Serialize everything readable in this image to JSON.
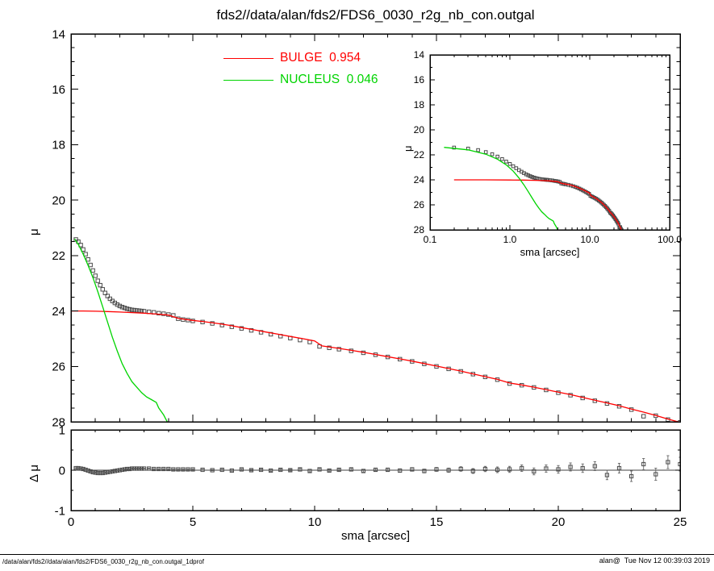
{
  "title": "fds2//data/alan/fds2/FDS6_0030_r2g_nb_con.outgal",
  "footer": {
    "left": "/data/alan/fds2//data/alan/fds2/FDS6_0030_r2g_nb_con.outgal_1dprof",
    "right": "alan@  Tue Nov 12 00:39:03 2019"
  },
  "legend": {
    "items": [
      {
        "label": "BULGE  0.954",
        "color": "#ff0000"
      },
      {
        "label": "NUCLEUS  0.046",
        "color": "#00d400"
      }
    ]
  },
  "colors": {
    "axis": "#000000",
    "data_marker": "#4a4a4a",
    "bulge": "#ff0000",
    "nucleus": "#00d400",
    "background": "#ffffff"
  },
  "chart_data": [
    {
      "id": "main",
      "type": "scatter",
      "xlabel": "sma [arcsec]",
      "ylabel": "μ",
      "xlim": [
        0,
        25
      ],
      "ylim": [
        28,
        14
      ],
      "xticks": [
        0,
        5,
        10,
        15,
        20,
        25
      ],
      "yticks": [
        14,
        16,
        18,
        20,
        22,
        24,
        26,
        28
      ],
      "grid": false,
      "series": [
        {
          "name": "profile-data",
          "type": "scatter",
          "marker": "open-square",
          "color": "#4a4a4a",
          "x": [
            0.2,
            0.3,
            0.4,
            0.5,
            0.6,
            0.7,
            0.8,
            0.9,
            1.0,
            1.1,
            1.2,
            1.3,
            1.4,
            1.5,
            1.6,
            1.7,
            1.8,
            1.9,
            2.0,
            2.1,
            2.2,
            2.3,
            2.4,
            2.5,
            2.6,
            2.7,
            2.8,
            2.9,
            3.0,
            3.2,
            3.4,
            3.6,
            3.8,
            4.0,
            4.2,
            4.4,
            4.6,
            4.8,
            5.0,
            5.4,
            5.8,
            6.2,
            6.6,
            7.0,
            7.4,
            7.8,
            8.2,
            8.6,
            9.0,
            9.4,
            9.8,
            10.2,
            10.6,
            11.0,
            11.5,
            12.0,
            12.5,
            13.0,
            13.5,
            14.0,
            14.5,
            15.0,
            15.5,
            16.0,
            16.5,
            17.0,
            17.5,
            18.0,
            18.5,
            19.0,
            19.5,
            20.0,
            20.5,
            21.0,
            21.5,
            22.0,
            22.5,
            23.0,
            23.5,
            24.0,
            24.5,
            25.0
          ],
          "y": [
            21.42,
            21.5,
            21.62,
            21.78,
            21.95,
            22.14,
            22.34,
            22.54,
            22.73,
            22.91,
            23.07,
            23.22,
            23.35,
            23.46,
            23.56,
            23.64,
            23.71,
            23.77,
            23.82,
            23.86,
            23.89,
            23.92,
            23.94,
            23.96,
            23.97,
            23.98,
            23.99,
            24.0,
            24.01,
            24.03,
            24.05,
            24.08,
            24.1,
            24.13,
            24.16,
            24.28,
            24.31,
            24.33,
            24.36,
            24.4,
            24.45,
            24.51,
            24.57,
            24.63,
            24.7,
            24.77,
            24.84,
            24.91,
            24.98,
            25.05,
            25.12,
            25.28,
            25.33,
            25.38,
            25.44,
            25.51,
            25.58,
            25.66,
            25.74,
            25.82,
            25.91,
            26.0,
            26.09,
            26.18,
            26.28,
            26.38,
            26.48,
            26.62,
            26.68,
            26.76,
            26.85,
            26.95,
            27.04,
            27.14,
            27.24,
            27.34,
            27.44,
            27.56,
            27.8,
            27.78,
            27.92,
            28.02
          ]
        },
        {
          "name": "bulge-model",
          "type": "line",
          "color": "#ff0000",
          "x": [
            0,
            0.2,
            0.3,
            0.5,
            1,
            1.5,
            2,
            2.5,
            3,
            3.5,
            4,
            4.4,
            5,
            5.5,
            6,
            6.5,
            7,
            7.5,
            8,
            8.5,
            9,
            9.5,
            10,
            10.3,
            11,
            11.5,
            12,
            12.5,
            13,
            13.5,
            14,
            14.5,
            15,
            15.5,
            16,
            16.5,
            17,
            17.5,
            18,
            18.5,
            19,
            19.5,
            20,
            20.5,
            21,
            21.5,
            22,
            22.5,
            23,
            23.5,
            24,
            24.5,
            25
          ],
          "y": [
            24.0,
            24.0,
            24.0,
            24.0,
            24.01,
            24.02,
            24.04,
            24.06,
            24.08,
            24.11,
            24.15,
            24.27,
            24.34,
            24.39,
            24.45,
            24.52,
            24.6,
            24.68,
            24.76,
            24.84,
            24.92,
            25.0,
            25.08,
            25.26,
            25.35,
            25.42,
            25.49,
            25.57,
            25.65,
            25.73,
            25.81,
            25.9,
            25.99,
            26.08,
            26.17,
            26.27,
            26.37,
            26.47,
            26.6,
            26.67,
            26.75,
            26.84,
            26.93,
            27.02,
            27.12,
            27.22,
            27.32,
            27.42,
            27.54,
            27.65,
            27.77,
            27.9,
            28.02
          ]
        },
        {
          "name": "nucleus-model",
          "type": "line",
          "color": "#00d400",
          "x": [
            0.15,
            0.3,
            0.5,
            0.7,
            0.9,
            1.1,
            1.3,
            1.5,
            1.7,
            1.9,
            2.1,
            2.3,
            2.5,
            2.7,
            2.9,
            3.1,
            3.3,
            3.5,
            3.6,
            3.8,
            3.95,
            4.1
          ],
          "y": [
            21.4,
            21.6,
            21.95,
            22.35,
            22.8,
            23.3,
            23.85,
            24.4,
            24.95,
            25.45,
            25.9,
            26.25,
            26.55,
            26.75,
            26.95,
            27.1,
            27.2,
            27.3,
            27.5,
            27.75,
            28.0,
            28.3
          ]
        }
      ]
    },
    {
      "id": "inset",
      "type": "scatter",
      "xscale": "log",
      "xlabel": "sma [arcsec]",
      "ylabel": "μ",
      "xlim": [
        0.1,
        100
      ],
      "ylim": [
        28,
        14
      ],
      "xticks": [
        0.1,
        1.0,
        10.0,
        100.0
      ],
      "xtick_labels": [
        "0.1",
        "1.0",
        "10.0",
        "100.0"
      ],
      "yticks": [
        14,
        16,
        18,
        20,
        22,
        24,
        26,
        28
      ],
      "grid": false,
      "series_from": "main"
    },
    {
      "id": "residual",
      "type": "scatter",
      "xlabel": "sma [arcsec]",
      "ylabel": "Δ μ",
      "xlim": [
        0,
        25
      ],
      "ylim": [
        -1,
        1
      ],
      "xticks": [
        0,
        5,
        10,
        15,
        20,
        25
      ],
      "yticks": [
        -1,
        0,
        1
      ],
      "grid": false,
      "series": [
        {
          "name": "residual-data",
          "type": "scatter",
          "marker": "open-square",
          "color": "#4a4a4a",
          "x": [
            0.2,
            0.3,
            0.4,
            0.5,
            0.6,
            0.7,
            0.8,
            0.9,
            1.0,
            1.1,
            1.2,
            1.3,
            1.4,
            1.5,
            1.6,
            1.7,
            1.8,
            1.9,
            2.0,
            2.1,
            2.2,
            2.3,
            2.4,
            2.5,
            2.6,
            2.7,
            2.8,
            2.9,
            3.0,
            3.2,
            3.4,
            3.6,
            3.8,
            4.0,
            4.2,
            4.4,
            4.6,
            4.8,
            5.0,
            5.4,
            5.8,
            6.2,
            6.6,
            7.0,
            7.4,
            7.8,
            8.2,
            8.6,
            9.0,
            9.4,
            9.8,
            10.2,
            10.6,
            11.0,
            11.5,
            12.0,
            12.5,
            13.0,
            13.5,
            14.0,
            14.5,
            15.0,
            15.5,
            16.0,
            16.5,
            17.0,
            17.5,
            18.0,
            18.5,
            19.0,
            19.5,
            20.0,
            20.5,
            21.0,
            21.5,
            22.0,
            22.5,
            23.0,
            23.5,
            24.0,
            24.5,
            25.0
          ],
          "y": [
            0.05,
            0.05,
            0.04,
            0.03,
            0.01,
            -0.01,
            -0.03,
            -0.05,
            -0.06,
            -0.07,
            -0.07,
            -0.07,
            -0.06,
            -0.05,
            -0.04,
            -0.03,
            -0.02,
            -0.01,
            0.0,
            0.01,
            0.02,
            0.03,
            0.03,
            0.04,
            0.04,
            0.04,
            0.04,
            0.04,
            0.04,
            0.04,
            0.03,
            0.03,
            0.03,
            0.03,
            0.02,
            0.02,
            0.02,
            0.02,
            0.02,
            0.01,
            0.0,
            0.01,
            -0.01,
            0.02,
            0.0,
            0.01,
            -0.01,
            0.01,
            0.0,
            0.02,
            -0.02,
            0.02,
            -0.01,
            0.01,
            0.02,
            -0.02,
            0.01,
            0.01,
            -0.01,
            0.02,
            -0.02,
            0.02,
            0.0,
            0.03,
            -0.02,
            0.03,
            0.01,
            0.02,
            0.05,
            -0.03,
            0.04,
            0.02,
            0.08,
            0.05,
            0.1,
            -0.12,
            0.05,
            -0.15,
            0.15,
            -0.1,
            0.2,
            0.15
          ],
          "yerr": [
            0.01,
            0.01,
            0.01,
            0.01,
            0.01,
            0.01,
            0.01,
            0.01,
            0.01,
            0.01,
            0.01,
            0.01,
            0.01,
            0.01,
            0.01,
            0.01,
            0.01,
            0.01,
            0.01,
            0.01,
            0.01,
            0.01,
            0.01,
            0.01,
            0.01,
            0.01,
            0.01,
            0.01,
            0.01,
            0.01,
            0.01,
            0.01,
            0.01,
            0.01,
            0.01,
            0.01,
            0.01,
            0.01,
            0.01,
            0.012,
            0.013,
            0.014,
            0.015,
            0.016,
            0.017,
            0.018,
            0.019,
            0.02,
            0.021,
            0.022,
            0.024,
            0.025,
            0.026,
            0.028,
            0.03,
            0.032,
            0.034,
            0.036,
            0.039,
            0.042,
            0.045,
            0.048,
            0.052,
            0.056,
            0.06,
            0.065,
            0.07,
            0.075,
            0.08,
            0.085,
            0.09,
            0.095,
            0.1,
            0.105,
            0.11,
            0.115,
            0.12,
            0.13,
            0.14,
            0.15,
            0.16,
            0.17
          ]
        }
      ]
    }
  ]
}
